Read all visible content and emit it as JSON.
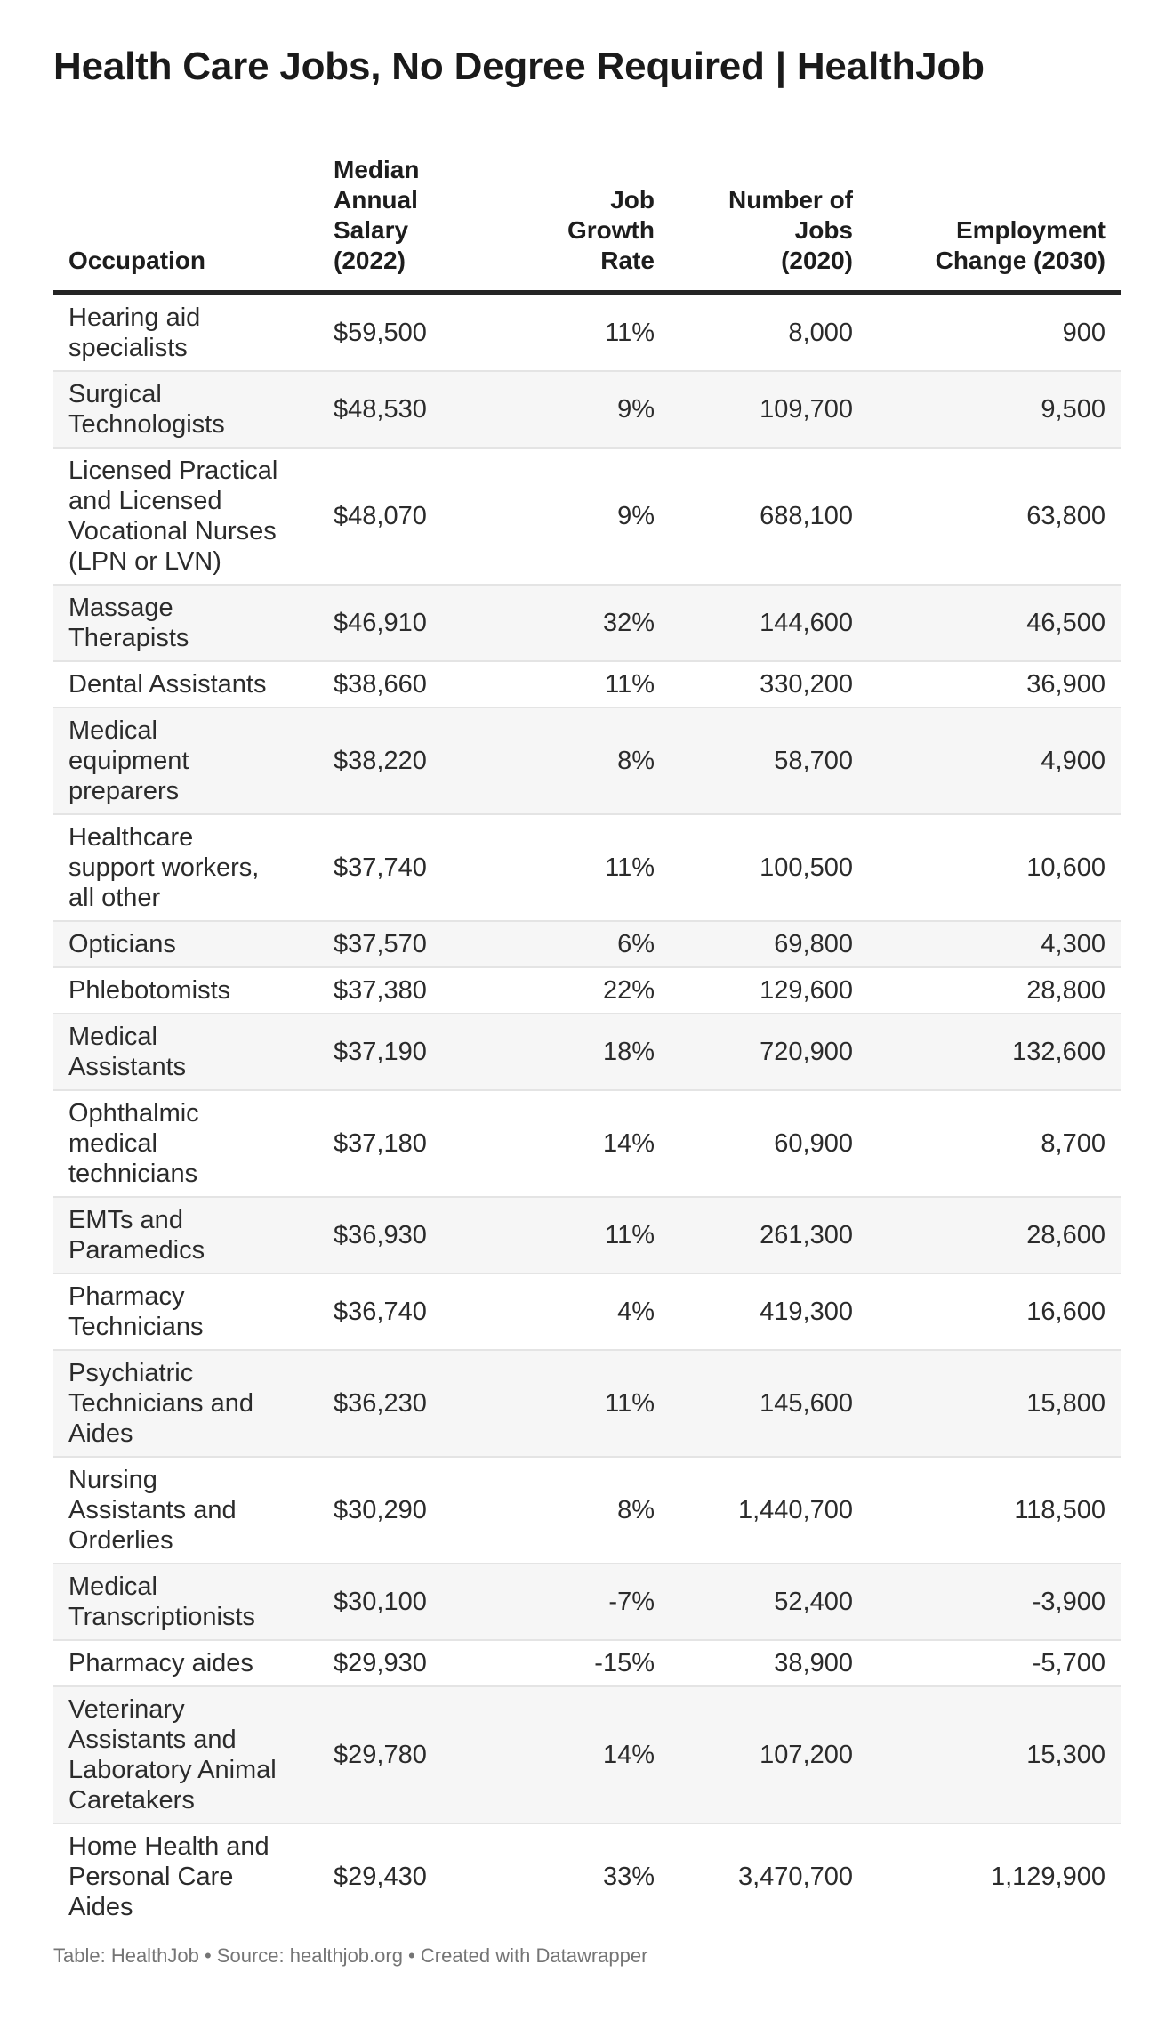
{
  "page": {
    "title": "Health Care Jobs, No Degree Required | HealthJob",
    "footer": "Table: HealthJob • Source: healthjob.org • Created with Datawrapper"
  },
  "colors": {
    "zebra_row": "#f6f6f6",
    "row_border": "#e4e4e4",
    "header_border": "#242424",
    "body_text": "#2b2b2b",
    "footer_text": "#757575"
  },
  "table": {
    "header": [
      "Occupation",
      "Median\nAnnual\nSalary\n(2022)",
      "Job\nGrowth\nRate",
      "Number of\nJobs\n(2020)",
      "Employment\nChange (2030)"
    ],
    "rows": [
      [
        "Hearing aid\nspecialists",
        "$59,500",
        "11%",
        "8,000",
        "900"
      ],
      [
        "Surgical\nTechnologists",
        "$48,530",
        "9%",
        "109,700",
        "9,500"
      ],
      [
        "Licensed Practical\nand Licensed\nVocational Nurses\n(LPN or LVN)",
        "$48,070",
        "9%",
        "688,100",
        "63,800"
      ],
      [
        "Massage\nTherapists",
        "$46,910",
        "32%",
        "144,600",
        "46,500"
      ],
      [
        "Dental Assistants",
        "$38,660",
        "11%",
        "330,200",
        "36,900"
      ],
      [
        "Medical\nequipment\npreparers",
        "$38,220",
        "8%",
        "58,700",
        "4,900"
      ],
      [
        "Healthcare\nsupport workers,\nall other",
        "$37,740",
        "11%",
        "100,500",
        "10,600"
      ],
      [
        "Opticians",
        "$37,570",
        "6%",
        "69,800",
        "4,300"
      ],
      [
        "Phlebotomists",
        "$37,380",
        "22%",
        "129,600",
        "28,800"
      ],
      [
        "Medical\nAssistants",
        "$37,190",
        "18%",
        "720,900",
        "132,600"
      ],
      [
        "Ophthalmic\nmedical\ntechnicians",
        "$37,180",
        "14%",
        "60,900",
        "8,700"
      ],
      [
        "EMTs and\nParamedics",
        "$36,930",
        "11%",
        "261,300",
        "28,600"
      ],
      [
        "Pharmacy\nTechnicians",
        "$36,740",
        "4%",
        "419,300",
        "16,600"
      ],
      [
        "Psychiatric\nTechnicians and\nAides",
        "$36,230",
        "11%",
        "145,600",
        "15,800"
      ],
      [
        "Nursing\nAssistants and\nOrderlies",
        "$30,290",
        "8%",
        "1,440,700",
        "118,500"
      ],
      [
        "Medical\nTranscriptionists",
        "$30,100",
        "-7%",
        "52,400",
        "-3,900"
      ],
      [
        "Pharmacy aides",
        "$29,930",
        "-15%",
        "38,900",
        "-5,700"
      ],
      [
        "Veterinary\nAssistants and\nLaboratory Animal\nCaretakers",
        "$29,780",
        "14%",
        "107,200",
        "15,300"
      ],
      [
        "Home Health and\nPersonal Care\nAides",
        "$29,430",
        "33%",
        "3,470,700",
        "1,129,900"
      ]
    ]
  },
  "chart_data": {
    "type": "table",
    "title": "Health Care Jobs, No Degree Required | HealthJob",
    "columns": [
      "Occupation",
      "Median Annual Salary (2022)",
      "Job Growth Rate",
      "Number of Jobs (2020)",
      "Employment Change (2030)"
    ],
    "rows": [
      [
        "Hearing aid specialists",
        59500,
        11,
        8000,
        900
      ],
      [
        "Surgical Technologists",
        48530,
        9,
        109700,
        9500
      ],
      [
        "Licensed Practical and Licensed Vocational Nurses (LPN or LVN)",
        48070,
        9,
        688100,
        63800
      ],
      [
        "Massage Therapists",
        46910,
        32,
        144600,
        46500
      ],
      [
        "Dental Assistants",
        38660,
        11,
        330200,
        36900
      ],
      [
        "Medical equipment preparers",
        38220,
        8,
        58700,
        4900
      ],
      [
        "Healthcare support workers, all other",
        37740,
        11,
        100500,
        10600
      ],
      [
        "Opticians",
        37570,
        6,
        69800,
        4300
      ],
      [
        "Phlebotomists",
        37380,
        22,
        129600,
        28800
      ],
      [
        "Medical Assistants",
        37190,
        18,
        720900,
        132600
      ],
      [
        "Ophthalmic medical technicians",
        37180,
        14,
        60900,
        8700
      ],
      [
        "EMTs and Paramedics",
        36930,
        11,
        261300,
        28600
      ],
      [
        "Pharmacy Technicians",
        36740,
        4,
        419300,
        16600
      ],
      [
        "Psychiatric Technicians and Aides",
        36230,
        11,
        145600,
        15800
      ],
      [
        "Nursing Assistants and Orderlies",
        30290,
        8,
        1440700,
        118500
      ],
      [
        "Medical Transcriptionists",
        30100,
        -7,
        52400,
        -3900
      ],
      [
        "Pharmacy aides",
        29930,
        -15,
        38900,
        -5700
      ],
      [
        "Veterinary Assistants and Laboratory Animal Caretakers",
        29780,
        14,
        107200,
        15300
      ],
      [
        "Home Health and Personal Care Aides",
        29430,
        33,
        3470700,
        1129900
      ]
    ]
  }
}
